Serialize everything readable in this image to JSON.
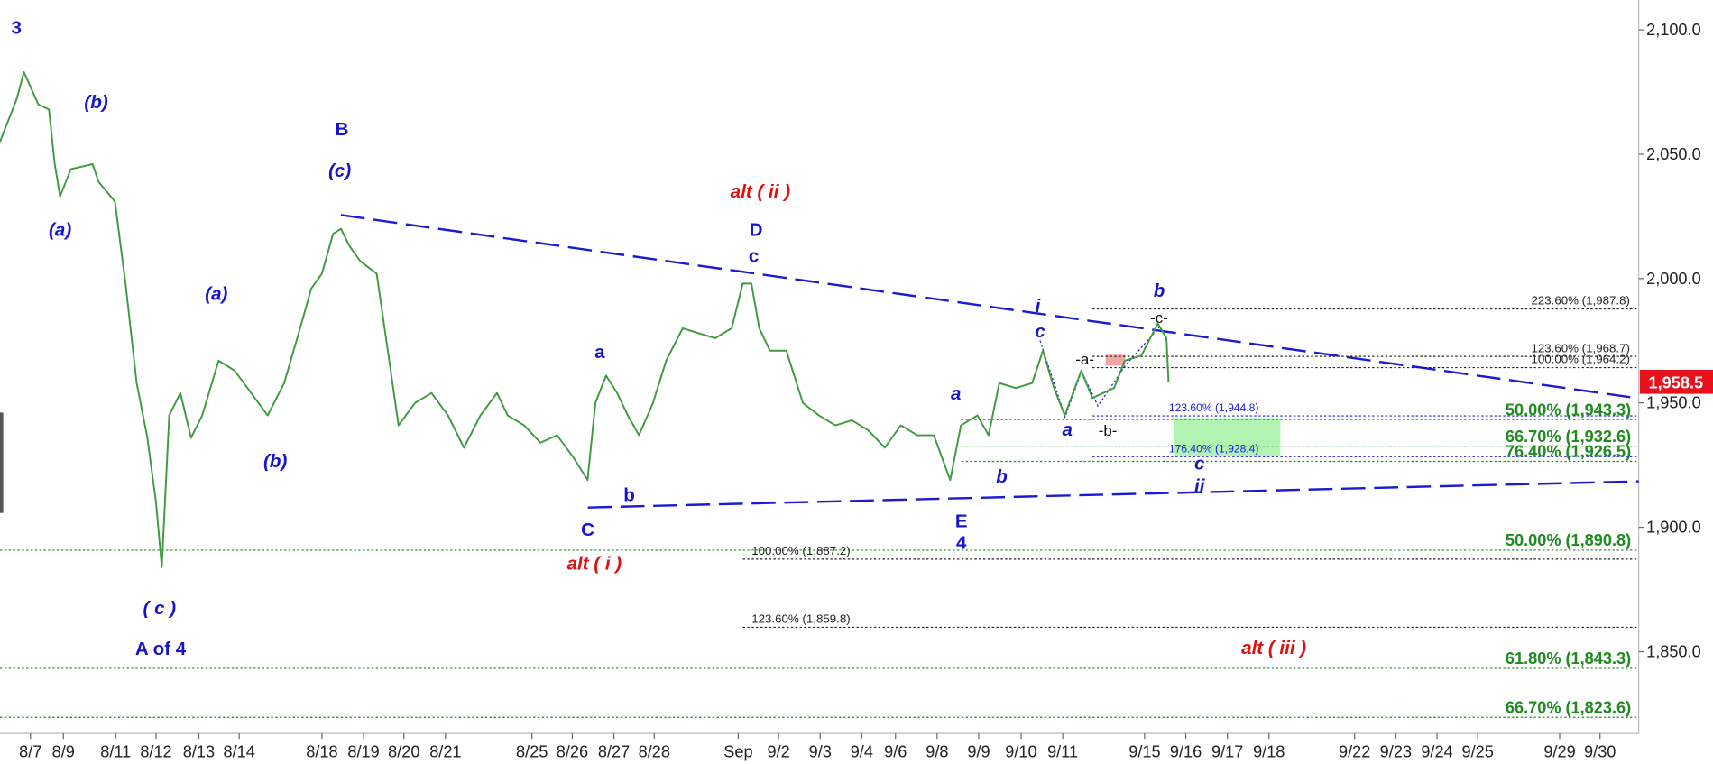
{
  "chart_data": {
    "type": "line",
    "color": "#3f9a3f",
    "x": [
      0,
      0.4,
      0.58,
      0.93,
      1.19,
      1.33,
      1.46,
      1.72,
      2.25,
      2.39,
      2.79,
      3.05,
      3.32,
      3.58,
      3.79,
      3.93,
      4.11,
      4.38,
      4.64,
      4.91,
      5.31,
      5.7,
      6.1,
      6.5,
      6.9,
      7.29,
      7.56,
      7.82,
      8.09,
      8.28,
      8.49,
      8.75,
      9.15,
      9.42,
      9.68,
      10.08,
      10.48,
      10.88,
      11.27,
      11.67,
      12.07,
      12.33,
      12.73,
      13.13,
      13.53,
      13.93,
      14.27,
      14.46,
      14.72,
      14.99,
      15.25,
      15.52,
      15.86,
      16.18,
      16.58,
      16.98,
      17.37,
      17.77,
      18.04,
      18.25,
      18.44,
      18.7,
      19.1,
      19.5,
      19.89,
      20.29,
      20.69,
      21.09,
      21.49,
      21.88,
      22.28,
      22.68,
      23.08,
      23.34,
      23.74,
      24.01,
      24.27,
      24.67,
      25.07,
      25.33,
      25.6,
      25.86,
      26.26,
      26.53,
      26.79,
      27.06,
      27.32,
      27.72,
      28.12,
      28.33,
      28.38
    ],
    "values": [
      2055,
      2072,
      2083,
      2070,
      2068,
      2046,
      2033,
      2044,
      2046,
      2039,
      2031,
      1998,
      1958,
      1936,
      1910,
      1884,
      1945,
      1954,
      1936,
      1945,
      1967,
      1963,
      1954,
      1945,
      1958,
      1980,
      1996,
      2002,
      2018,
      2020,
      2013,
      2007,
      2002,
      1971,
      1941,
      1950,
      1954,
      1945,
      1932,
      1945,
      1954,
      1945,
      1941,
      1934,
      1937,
      1928,
      1919,
      1950,
      1961,
      1954,
      1945,
      1937,
      1950,
      1967,
      1980,
      1978,
      1976,
      1980,
      1998,
      1998,
      1980,
      1971,
      1971,
      1950,
      1945,
      1941,
      1943,
      1939,
      1932,
      1941,
      1937,
      1937,
      1919,
      1941,
      1945,
      1937,
      1958,
      1956,
      1958,
      1971,
      1956,
      1945,
      1963,
      1952,
      1954,
      1956,
      1967,
      1969,
      1982,
      1976,
      1958.5
    ],
    "xlim": [
      0,
      39.8
    ],
    "xticks": [
      {
        "value": 0.74,
        "label": "8/7"
      },
      {
        "value": 1.54,
        "label": "8/9"
      },
      {
        "value": 2.81,
        "label": "8/11"
      },
      {
        "value": 3.79,
        "label": "8/12"
      },
      {
        "value": 4.83,
        "label": "8/13"
      },
      {
        "value": 5.81,
        "label": "8/14"
      },
      {
        "value": 7.82,
        "label": "8/18"
      },
      {
        "value": 8.83,
        "label": "8/19"
      },
      {
        "value": 9.81,
        "label": "8/20"
      },
      {
        "value": 10.82,
        "label": "8/21"
      },
      {
        "value": 12.92,
        "label": "8/25"
      },
      {
        "value": 13.9,
        "label": "8/26"
      },
      {
        "value": 14.91,
        "label": "8/27"
      },
      {
        "value": 15.89,
        "label": "8/28"
      },
      {
        "value": 17.93,
        "label": "Sep"
      },
      {
        "value": 18.91,
        "label": "9/2"
      },
      {
        "value": 19.92,
        "label": "9/3"
      },
      {
        "value": 20.93,
        "label": "9/4"
      },
      {
        "value": 21.75,
        "label": "9/6"
      },
      {
        "value": 22.76,
        "label": "9/8"
      },
      {
        "value": 23.77,
        "label": "9/9"
      },
      {
        "value": 24.8,
        "label": "9/10"
      },
      {
        "value": 25.81,
        "label": "9/11"
      },
      {
        "value": 27.8,
        "label": "9/15"
      },
      {
        "value": 28.8,
        "label": "9/16"
      },
      {
        "value": 29.81,
        "label": "9/17"
      },
      {
        "value": 30.82,
        "label": "9/18"
      },
      {
        "value": 32.9,
        "label": "9/22"
      },
      {
        "value": 33.9,
        "label": "9/23"
      },
      {
        "value": 34.9,
        "label": "9/24"
      },
      {
        "value": 35.89,
        "label": "9/25"
      },
      {
        "value": 37.88,
        "label": "9/29"
      },
      {
        "value": 38.86,
        "label": "9/30"
      }
    ],
    "ylim": [
      1818,
      2112
    ],
    "yticks": [
      {
        "value": 1850,
        "label": "1,850.0"
      },
      {
        "value": 1900,
        "label": "1,900.0"
      },
      {
        "value": 1950,
        "label": "1,950.0"
      },
      {
        "value": 2000,
        "label": "2,000.0"
      },
      {
        "value": 2050,
        "label": "2,050.0"
      },
      {
        "value": 2100,
        "label": "2,100.0"
      }
    ],
    "last_price": {
      "value": 1958.5,
      "label": "1,958.5"
    },
    "levels": [
      {
        "value": 1987.8,
        "label": "223.60% (1,987.8)",
        "color": "#222222"
      },
      {
        "value": 1968.7,
        "label": "123.60% (1,968.7)",
        "color": "#222222"
      },
      {
        "value": 1964.2,
        "label": "100.00% (1,964.2)",
        "color": "#222222"
      },
      {
        "value": 1944.8,
        "label": "123.60% (1,944.8)",
        "color": "#1a1aee"
      },
      {
        "value": 1943.3,
        "label": "50.00% (1,943.3)",
        "color": "#1f8a1f"
      },
      {
        "value": 1932.6,
        "label": "66.70% (1,932.6)",
        "color": "#1f8a1f"
      },
      {
        "value": 1928.4,
        "label": "176.40% (1,928.4)",
        "color": "#1a1aee"
      },
      {
        "value": 1926.5,
        "label": "76.40% (1,926.5)",
        "color": "#1f8a1f"
      },
      {
        "value": 1890.8,
        "label": "50.00% (1,890.8)",
        "color": "#1f8a1f"
      },
      {
        "value": 1887.2,
        "label": "100.00% (1,887.2)",
        "color": "#222222"
      },
      {
        "value": 1859.8,
        "label": "123.60% (1,859.8)",
        "color": "#222222"
      },
      {
        "value": 1843.3,
        "label": "61.80% (1,843.3)",
        "color": "#1f8a1f"
      },
      {
        "value": 1823.6,
        "label": "66.70% (1,823.6)",
        "color": "#1f8a1f"
      }
    ],
    "annotations": [
      {
        "text": "3",
        "color": "#1515d0",
        "italic": false
      },
      {
        "text": "(b)",
        "color": "#1515d0",
        "italic": true
      },
      {
        "text": "(a)",
        "color": "#1515d0",
        "italic": true
      },
      {
        "text": "B",
        "color": "#1515d0",
        "italic": false
      },
      {
        "text": "(c)",
        "color": "#1515d0",
        "italic": true
      },
      {
        "text": "(a)",
        "color": "#1515d0",
        "italic": true
      },
      {
        "text": "(b)",
        "color": "#1515d0",
        "italic": true
      },
      {
        "text": "( c )",
        "color": "#1515d0",
        "italic": true
      },
      {
        "text": "A of 4",
        "color": "#1515d0",
        "italic": false
      },
      {
        "text": "alt ( ii )",
        "color": "#e01010",
        "italic": true
      },
      {
        "text": "D",
        "color": "#1515d0",
        "italic": false
      },
      {
        "text": "c",
        "color": "#1515d0",
        "italic": false
      },
      {
        "text": "a",
        "color": "#1515d0",
        "italic": false
      },
      {
        "text": "b",
        "color": "#1515d0",
        "italic": false
      },
      {
        "text": "C",
        "color": "#1515d0",
        "italic": false
      },
      {
        "text": "alt ( i )",
        "color": "#e01010",
        "italic": true
      },
      {
        "text": "a",
        "color": "#1515d0",
        "italic": true
      },
      {
        "text": "b",
        "color": "#1515d0",
        "italic": true
      },
      {
        "text": "E",
        "color": "#1515d0",
        "italic": false
      },
      {
        "text": "4",
        "color": "#1515d0",
        "italic": false
      },
      {
        "text": "i",
        "color": "#1515d0",
        "italic": true
      },
      {
        "text": "c",
        "color": "#1515d0",
        "italic": true
      },
      {
        "text": "a",
        "color": "#1515d0",
        "italic": true
      },
      {
        "text": "-a-",
        "color": "#111111",
        "italic": false
      },
      {
        "text": "-b-",
        "color": "#111111",
        "italic": false
      },
      {
        "text": "-c-",
        "color": "#111111",
        "italic": false
      },
      {
        "text": "b",
        "color": "#1515d0",
        "italic": true
      },
      {
        "text": "c",
        "color": "#1515d0",
        "italic": true
      },
      {
        "text": "ii",
        "color": "#1515d0",
        "italic": true
      },
      {
        "text": "alt ( iii )",
        "color": "#e01010",
        "italic": true
      }
    ]
  }
}
